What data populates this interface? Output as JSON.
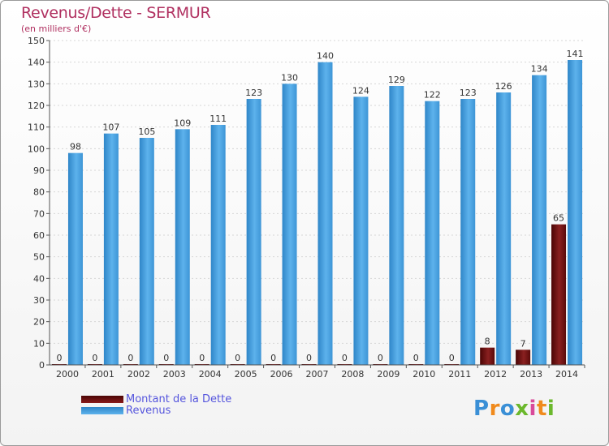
{
  "chart_data": {
    "type": "bar",
    "title": "Revenus/Dette - SERMUR",
    "subtitle": "(en milliers d'€)",
    "categories": [
      "2000",
      "2001",
      "2002",
      "2003",
      "2004",
      "2005",
      "2006",
      "2007",
      "2008",
      "2009",
      "2010",
      "2011",
      "2012",
      "2013",
      "2014"
    ],
    "series": [
      {
        "name": "Montant de la Dette",
        "color": "#7a1010",
        "values": [
          0,
          0,
          0,
          0,
          0,
          0,
          0,
          0,
          0,
          0,
          0,
          0,
          8,
          7,
          65
        ]
      },
      {
        "name": "Revenus",
        "color": "#4da3e0",
        "values": [
          98,
          107,
          105,
          109,
          111,
          123,
          130,
          140,
          124,
          129,
          122,
          123,
          126,
          134,
          141
        ]
      }
    ],
    "ylim": [
      0,
      150
    ],
    "yticks": [
      0,
      10,
      20,
      30,
      40,
      50,
      60,
      70,
      80,
      90,
      100,
      110,
      120,
      130,
      140,
      150
    ],
    "grid": true,
    "legend_position": "bottom-left"
  },
  "logo": {
    "letters": [
      "P",
      "r",
      "o",
      "x",
      "i",
      "t",
      "i"
    ],
    "colors": [
      "#3a8fd6",
      "#f08a1c",
      "#3a8fd6",
      "#6bb82c",
      "#d94a9a",
      "#f08a1c",
      "#6bb82c"
    ]
  }
}
